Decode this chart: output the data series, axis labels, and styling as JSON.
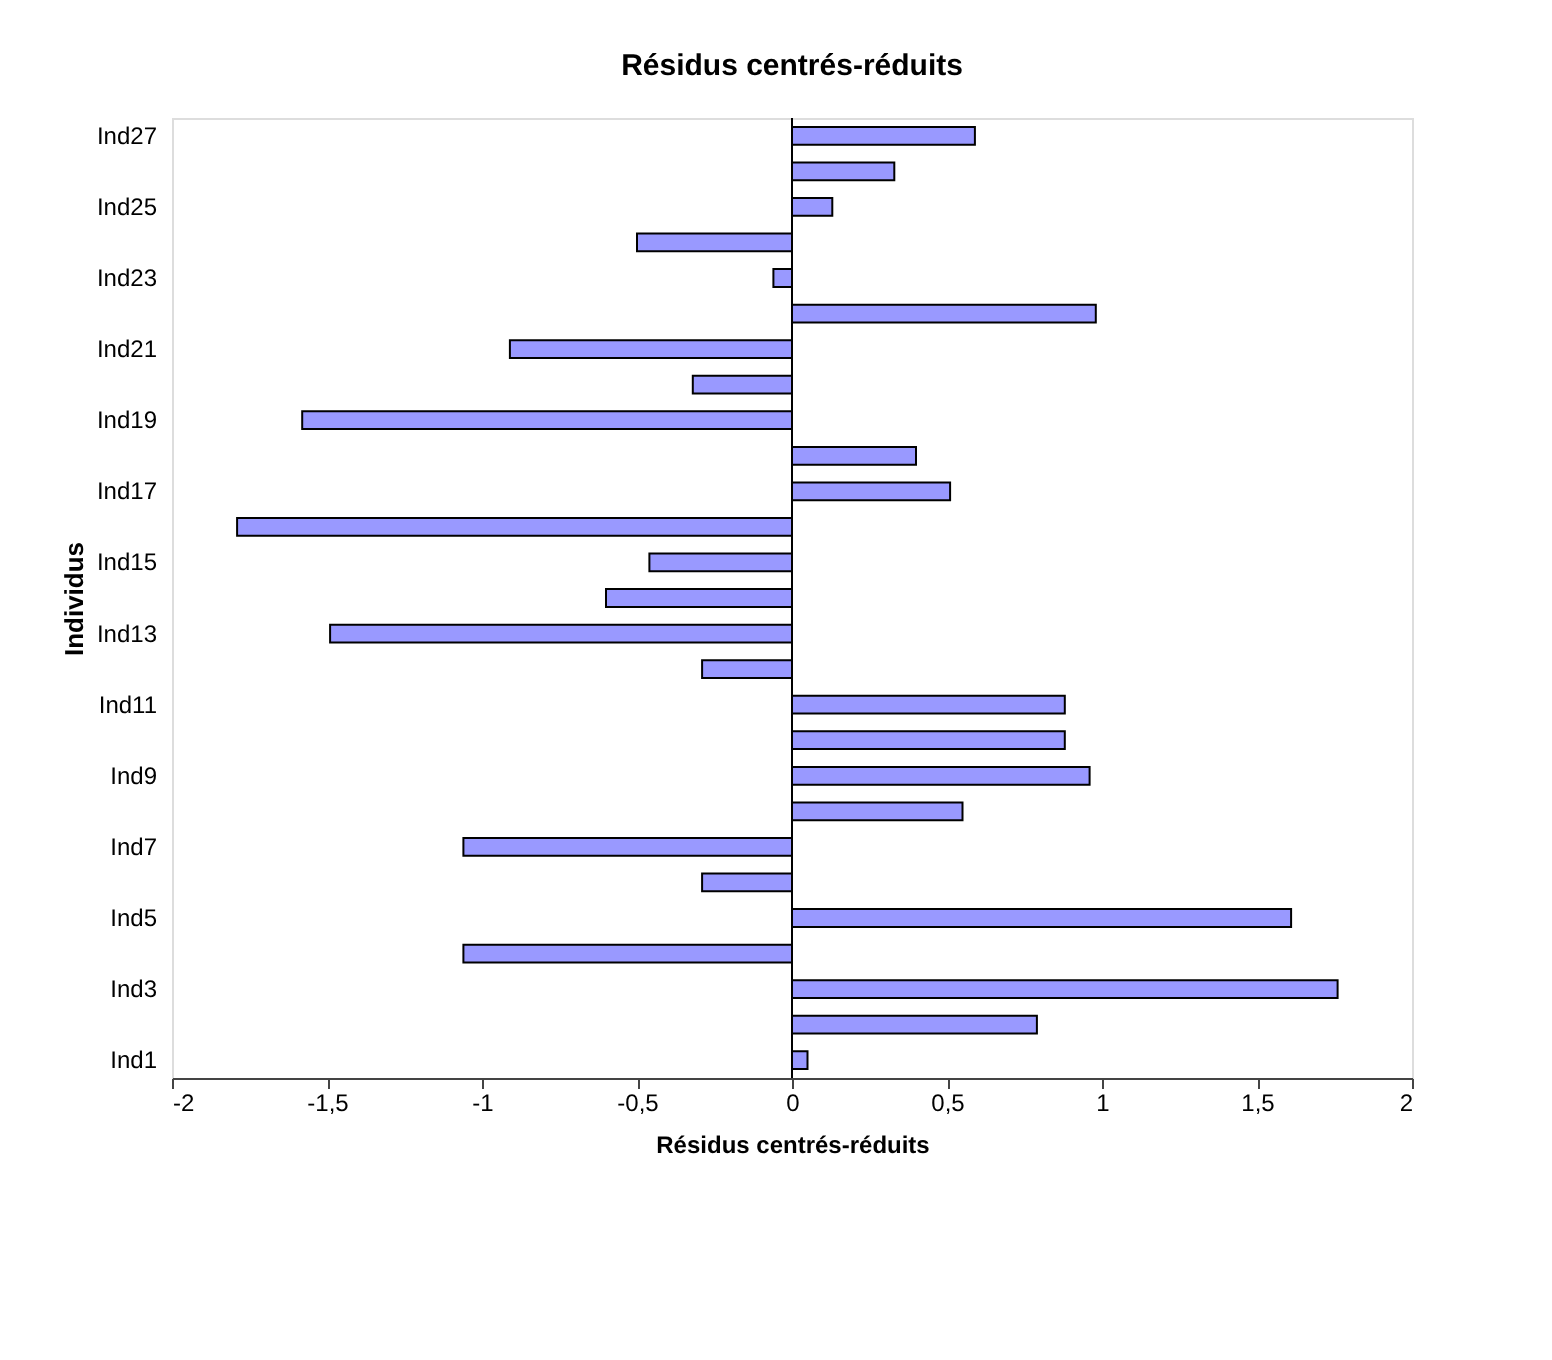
{
  "chart_data": {
    "type": "bar",
    "orientation": "horizontal",
    "title": "Résidus centrés-réduits",
    "xlabel": "Résidus centrés-réduits",
    "ylabel": "Individus",
    "categories": [
      "Ind27",
      null,
      "Ind25",
      null,
      "Ind23",
      null,
      "Ind21",
      null,
      "Ind19",
      null,
      "Ind17",
      null,
      "Ind15",
      null,
      "Ind13",
      null,
      "Ind11",
      null,
      "Ind9",
      null,
      "Ind7",
      null,
      "Ind5",
      null,
      "Ind3",
      null,
      "Ind1"
    ],
    "values": [
      0.59,
      0.33,
      0.13,
      -0.5,
      -0.06,
      0.98,
      -0.91,
      -0.32,
      -1.58,
      0.4,
      0.51,
      -1.79,
      -0.46,
      -0.6,
      -1.49,
      -0.29,
      0.88,
      0.88,
      0.96,
      0.55,
      -1.06,
      -0.29,
      1.61,
      -1.06,
      1.76,
      0.79,
      0.05
    ],
    "color": "#9999ff",
    "xlim": [
      -2,
      2
    ],
    "xticks": [
      -2,
      {
        "value": -1.5,
        "label": "-1,5"
      },
      -1,
      {
        "value": -0.5,
        "label": "-0,5"
      },
      0,
      {
        "value": 0.5,
        "label": "0,5"
      },
      1,
      {
        "value": 1.5,
        "label": "1,5"
      },
      2
    ]
  }
}
